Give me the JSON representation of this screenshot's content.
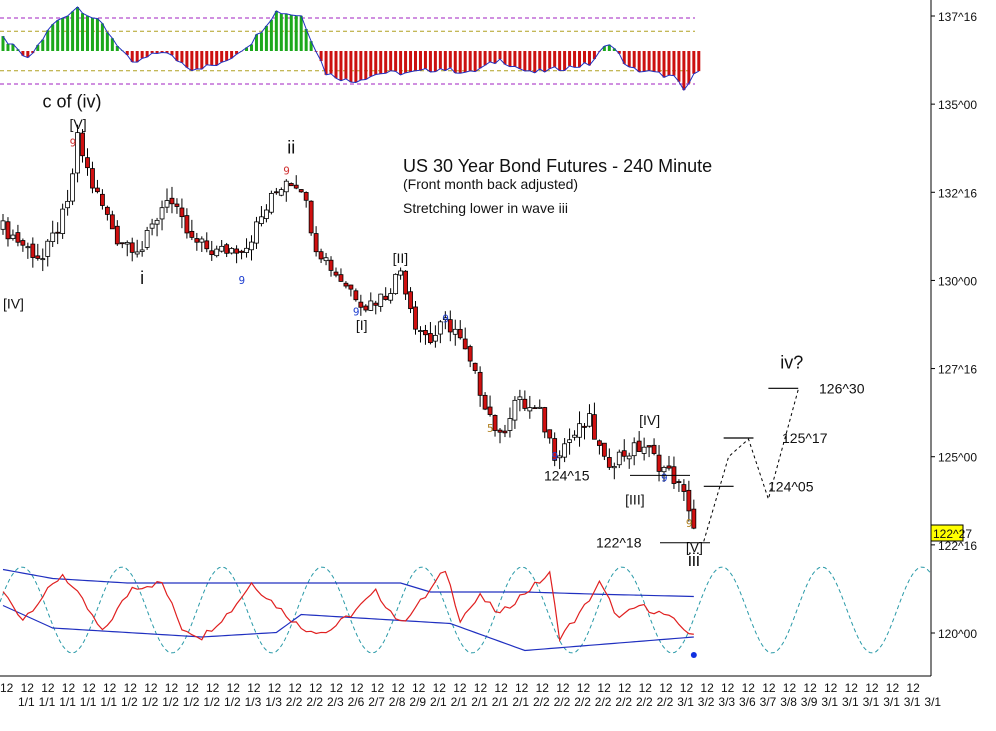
{
  "chart_data": {
    "type": "candlestick",
    "title": "US 30 Year Bond Futures - 240 Minute",
    "subtitle": "(Front month back adjusted)",
    "comment": "Stretching lower in wave iii",
    "y_axis": {
      "ticks": [
        "137^16",
        "135^00",
        "132^16",
        "130^00",
        "127^16",
        "125^00",
        "122^16",
        "120^00"
      ],
      "tick_values": [
        137.5,
        135.0,
        132.5,
        130.0,
        127.5,
        125.0,
        122.5,
        120.0
      ],
      "ylim": [
        119.5,
        137.9
      ],
      "current_price_label": "122^27",
      "current_price": 122.84
    },
    "x_axis": {
      "row1_label": "12",
      "row2_labels": [
        "1/1",
        "1/1",
        "1/1",
        "1/1",
        "1/1",
        "1/2",
        "1/2",
        "1/2",
        "1/2",
        "1/2",
        "1/2",
        "1/3",
        "1/3",
        "2/2",
        "2/2",
        "2/3",
        "2/6",
        "2/7",
        "2/8",
        "2/9",
        "2/1",
        "2/1",
        "2/1",
        "2/1",
        "2/1",
        "2/2",
        "2/2",
        "2/2",
        "2/2",
        "2/2",
        "2/2",
        "2/2",
        "3/1",
        "3/2",
        "3/3",
        "3/6",
        "3/7",
        "3/8",
        "3/9",
        "3/1",
        "3/1",
        "3/1",
        "3/1",
        "3/1",
        "3/1"
      ]
    },
    "wave_labels": [
      {
        "text": "c of (iv)",
        "price": 134.9,
        "bar": 15
      },
      {
        "text": "[V]",
        "price": 134.3,
        "bar": 15
      },
      {
        "text": "ii",
        "price": 133.6,
        "bar": 58
      },
      {
        "text": "i",
        "price": 129.9,
        "bar": 28
      },
      {
        "text": "[IV]",
        "price": 129.2,
        "bar": 2
      },
      {
        "text": "[II]",
        "price": 130.5,
        "bar": 80
      },
      {
        "text": "[I]",
        "price": 128.6,
        "bar": 72
      },
      {
        "text": "[IV]",
        "price": 125.9,
        "bar": 130
      },
      {
        "text": "[III]",
        "price": 123.65,
        "bar": 128
      },
      {
        "text": "[V]",
        "price": 122.3,
        "bar": 139
      },
      {
        "text": "iii",
        "price": 121.9,
        "bar": 139
      },
      {
        "text": "iv?",
        "price": 127.5,
        "bar": 158
      }
    ],
    "price_labels": [
      {
        "text": "124^15",
        "price": 124.47
      },
      {
        "text": "122^18",
        "price": 122.56
      },
      {
        "text": "124^05",
        "price": 124.16
      },
      {
        "text": "125^17",
        "price": 125.53
      },
      {
        "text": "126^30",
        "price": 126.94
      }
    ],
    "projection": {
      "points": [
        [
          141,
          122.6
        ],
        [
          146,
          125.0
        ],
        [
          150,
          125.5
        ],
        [
          154,
          123.8
        ],
        [
          160,
          126.9
        ]
      ],
      "levels": [
        {
          "bar_from": 141,
          "bar_to": 147,
          "price": 124.16
        },
        {
          "bar_from": 145,
          "bar_to": 151,
          "price": 125.53
        },
        {
          "bar_from": 154,
          "bar_to": 160,
          "price": 126.94
        }
      ]
    },
    "count_marks": [
      {
        "text": "9",
        "bar": 14,
        "price": 133.8,
        "color": "#d03030"
      },
      {
        "text": "9",
        "bar": 57,
        "price": 133.0,
        "color": "#d03030"
      },
      {
        "text": "9",
        "bar": 48,
        "price": 129.9,
        "color": "#2040d0"
      },
      {
        "text": "9",
        "bar": 71,
        "price": 129.0,
        "color": "#2040d0"
      },
      {
        "text": "9",
        "bar": 89,
        "price": 128.8,
        "color": "#2040d0"
      },
      {
        "text": "5",
        "bar": 98,
        "price": 125.7,
        "color": "#b08020"
      },
      {
        "text": "9",
        "bar": 111,
        "price": 124.9,
        "color": "#2040d0"
      },
      {
        "text": "9",
        "bar": 133,
        "price": 124.3,
        "color": "#2040d0"
      },
      {
        "text": "9",
        "bar": 138,
        "price": 123.0,
        "color": "#b08020"
      }
    ],
    "swing_points": [
      [
        0,
        131.5
      ],
      [
        5,
        130.9
      ],
      [
        8,
        130.6
      ],
      [
        13,
        132.1
      ],
      [
        15,
        134.0
      ],
      [
        18,
        132.7
      ],
      [
        23,
        131.2
      ],
      [
        28,
        130.9
      ],
      [
        33,
        132.4
      ],
      [
        38,
        131.1
      ],
      [
        43,
        130.8
      ],
      [
        49,
        131.0
      ],
      [
        54,
        132.3
      ],
      [
        57,
        132.9
      ],
      [
        60,
        132.7
      ],
      [
        63,
        131.0
      ],
      [
        67,
        130.2
      ],
      [
        71,
        129.6
      ],
      [
        73,
        129.3
      ],
      [
        77,
        129.6
      ],
      [
        80,
        130.3
      ],
      [
        83,
        128.8
      ],
      [
        86,
        128.3
      ],
      [
        89,
        128.8
      ],
      [
        91,
        128.6
      ],
      [
        94,
        127.6
      ],
      [
        98,
        126.2
      ],
      [
        100,
        125.5
      ],
      [
        103,
        126.6
      ],
      [
        108,
        126.2
      ],
      [
        111,
        125.1
      ],
      [
        114,
        125.5
      ],
      [
        118,
        126.0
      ],
      [
        121,
        124.8
      ],
      [
        125,
        125.1
      ],
      [
        129,
        125.3
      ],
      [
        132,
        124.8
      ],
      [
        135,
        124.4
      ],
      [
        138,
        123.6
      ],
      [
        139,
        123.0
      ]
    ],
    "top_indicator": {
      "upper_band": 0.75,
      "lower_band": -0.75,
      "upper_mid": 0.45,
      "lower_mid": -0.45,
      "swing": [
        [
          0,
          0.3
        ],
        [
          5,
          -0.2
        ],
        [
          10,
          0.6
        ],
        [
          15,
          1.0
        ],
        [
          20,
          0.6
        ],
        [
          26,
          -0.3
        ],
        [
          32,
          0.0
        ],
        [
          38,
          -0.4
        ],
        [
          44,
          -0.3
        ],
        [
          50,
          0.2
        ],
        [
          55,
          0.9
        ],
        [
          60,
          0.8
        ],
        [
          65,
          -0.5
        ],
        [
          70,
          -0.7
        ],
        [
          76,
          -0.5
        ],
        [
          82,
          -0.5
        ],
        [
          88,
          -0.4
        ],
        [
          94,
          -0.5
        ],
        [
          100,
          -0.2
        ],
        [
          106,
          -0.5
        ],
        [
          112,
          -0.4
        ],
        [
          118,
          -0.3
        ],
        [
          122,
          0.2
        ],
        [
          126,
          -0.4
        ],
        [
          131,
          -0.5
        ],
        [
          135,
          -0.6
        ],
        [
          137,
          -0.9
        ],
        [
          140,
          -0.4
        ]
      ]
    },
    "bottom_indicator": {
      "red_line": [
        [
          0,
          0.4
        ],
        [
          4,
          -0.2
        ],
        [
          8,
          0.3
        ],
        [
          12,
          0.8
        ],
        [
          16,
          0.2
        ],
        [
          20,
          -0.5
        ],
        [
          26,
          0.5
        ],
        [
          32,
          0.6
        ],
        [
          36,
          -0.4
        ],
        [
          40,
          -0.6
        ],
        [
          46,
          0.0
        ],
        [
          50,
          0.6
        ],
        [
          55,
          0.1
        ],
        [
          60,
          -0.4
        ],
        [
          65,
          -0.5
        ],
        [
          70,
          -0.1
        ],
        [
          75,
          0.4
        ],
        [
          80,
          -0.3
        ],
        [
          85,
          0.3
        ],
        [
          89,
          0.9
        ],
        [
          92,
          -0.2
        ],
        [
          96,
          0.3
        ],
        [
          100,
          -0.1
        ],
        [
          104,
          0.3
        ],
        [
          110,
          0.8
        ],
        [
          112,
          -0.6
        ],
        [
          116,
          -0.1
        ],
        [
          120,
          0.6
        ],
        [
          124,
          -0.2
        ],
        [
          128,
          0.1
        ],
        [
          133,
          -0.1
        ],
        [
          137,
          -0.4
        ],
        [
          139,
          -0.6
        ]
      ],
      "blue_upper": [
        [
          0,
          0.9
        ],
        [
          10,
          0.7
        ],
        [
          25,
          0.6
        ],
        [
          40,
          0.6
        ],
        [
          60,
          0.6
        ],
        [
          80,
          0.6
        ],
        [
          86,
          0.4
        ],
        [
          105,
          0.4
        ],
        [
          120,
          0.35
        ],
        [
          139,
          0.3
        ]
      ],
      "blue_lower": [
        [
          0,
          0.1
        ],
        [
          10,
          -0.4
        ],
        [
          25,
          -0.5
        ],
        [
          40,
          -0.6
        ],
        [
          55,
          -0.5
        ],
        [
          60,
          -0.1
        ],
        [
          75,
          -0.2
        ],
        [
          90,
          -0.3
        ],
        [
          105,
          -0.9
        ],
        [
          139,
          -0.6
        ]
      ],
      "dot": [
        139,
        -1.0
      ]
    }
  }
}
